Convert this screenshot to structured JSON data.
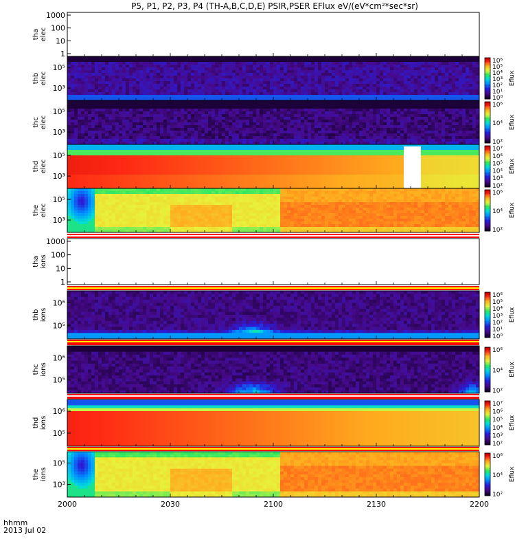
{
  "title": "P5, P1, P2, P3, P4 (TH-A,B,C,D,E) PSIR,PSER EFlux eV/(eV*cm²*sec*sr)",
  "time_axis": {
    "caption_line1": "hhmm",
    "caption_line2": "2013 Jul 02",
    "ticks": [
      "2000",
      "2030",
      "2100",
      "2130",
      "2200"
    ]
  },
  "colorbar_title": "Eflux",
  "chart_data": {
    "type": "heatmap",
    "x_range": [
      "20:00",
      "22:00"
    ],
    "panels": [
      {
        "id": "tha-elec",
        "ylabel": [
          "tha",
          "elec"
        ],
        "yticks": [
          "1000",
          "100",
          "10",
          "1"
        ],
        "empty": true
      },
      {
        "id": "thb-elec",
        "ylabel": [
          "thb",
          "elec"
        ],
        "yticks": [
          "10⁵",
          "10³"
        ],
        "kind": "noise_low",
        "colorbar": [
          "10⁶",
          "10⁵",
          "10⁴",
          "10³",
          "10²",
          "10¹",
          "10⁰"
        ]
      },
      {
        "id": "thc-elec",
        "ylabel": [
          "thc",
          "elec"
        ],
        "yticks": [
          "10⁵",
          "10³"
        ],
        "kind": "noise",
        "colorbar": [
          "10⁶",
          "10⁴",
          "10²"
        ]
      },
      {
        "id": "thd-elec",
        "ylabel": [
          "thd",
          "elec"
        ],
        "yticks": [
          "10⁵",
          "10³"
        ],
        "kind": "hot",
        "colorbar": [
          "10⁷",
          "10⁶",
          "10⁵",
          "10⁴",
          "10³",
          "10²"
        ],
        "gap": [
          "21:38",
          "21:43"
        ]
      },
      {
        "id": "the-elec",
        "ylabel": [
          "the",
          "elec"
        ],
        "yticks": [
          "10⁵",
          "10³"
        ],
        "kind": "warm",
        "colorbar": [
          "10⁶",
          "10⁴",
          "10²"
        ]
      },
      {
        "id": "tha-ions",
        "ylabel": [
          "tha",
          "ions"
        ],
        "yticks": [
          "1000",
          "100",
          "10",
          "1"
        ],
        "empty": true
      },
      {
        "id": "thb-ions",
        "ylabel": [
          "thb",
          "ions"
        ],
        "yticks": [
          "10⁶",
          "10⁵"
        ],
        "kind": "noise_ions",
        "colorbar": [
          "10⁶",
          "10⁵",
          "10⁴",
          "10³",
          "10²",
          "10¹",
          "10⁰"
        ]
      },
      {
        "id": "thc-ions",
        "ylabel": [
          "thc",
          "ions"
        ],
        "yticks": [
          "10⁶",
          "10⁵"
        ],
        "kind": "noise_ions2",
        "colorbar": [
          "10⁶",
          "10⁴",
          "10²"
        ]
      },
      {
        "id": "thd-ions",
        "ylabel": [
          "thd",
          "ions"
        ],
        "yticks": [
          "10⁶",
          "10⁵"
        ],
        "kind": "hot_ions",
        "colorbar": [
          "10⁷",
          "10⁶",
          "10⁵",
          "10⁴",
          "10³",
          "10²"
        ]
      },
      {
        "id": "the-ions",
        "ylabel": [
          "the",
          "ions"
        ],
        "yticks": [
          "10⁵",
          "10³"
        ],
        "kind": "warm",
        "colorbar": [
          "10⁶",
          "10⁴",
          "10²"
        ]
      }
    ]
  }
}
